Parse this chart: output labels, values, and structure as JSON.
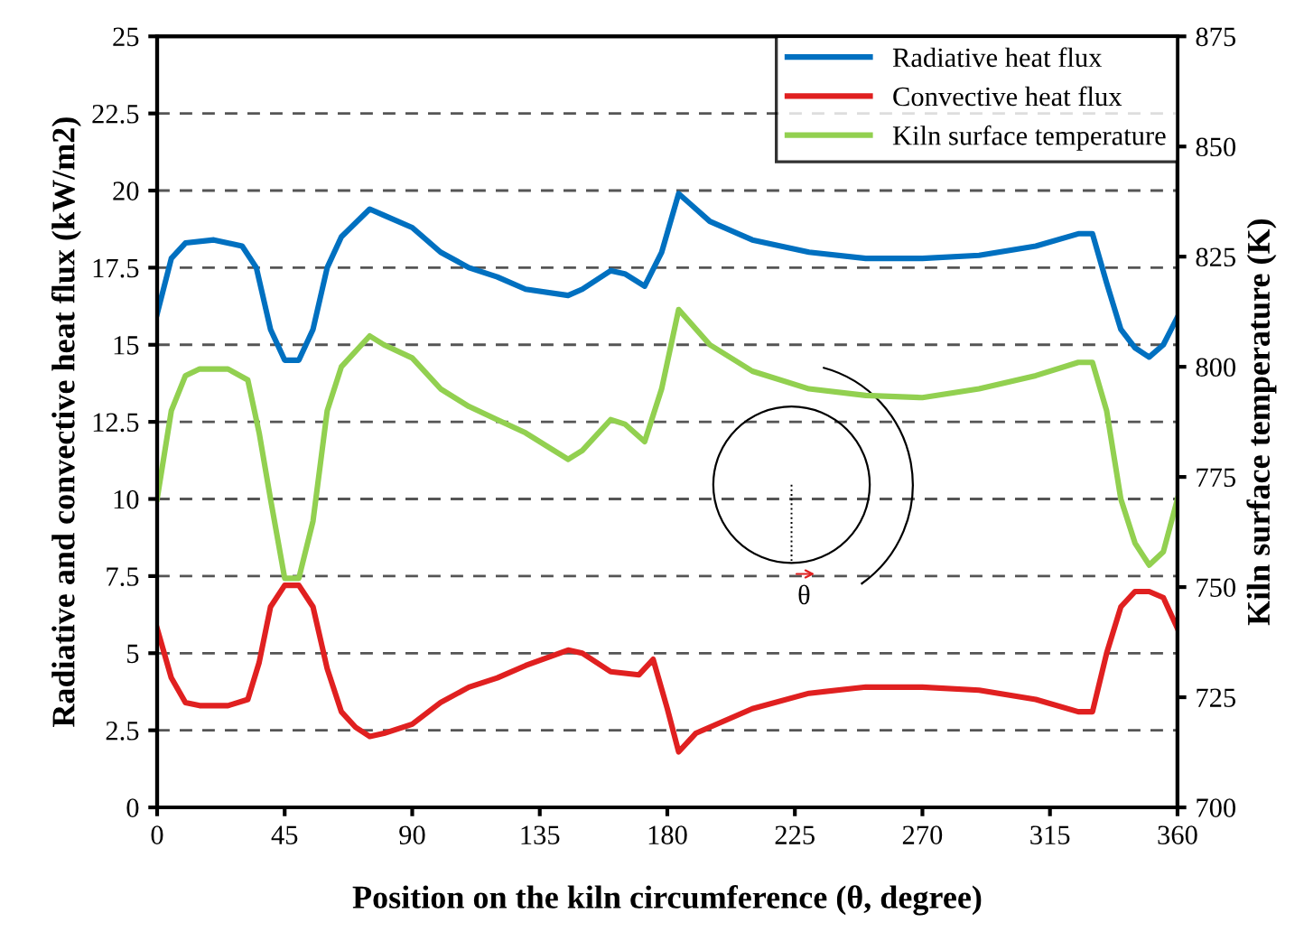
{
  "chart_data": {
    "type": "line",
    "xlabel": "Position on the kiln circumference (θ, degree)",
    "ylabel": "Radiative and convective heat flux (kW/m2)",
    "y2label": "Kiln surface temperature (K)",
    "annotations": [
      "θ"
    ],
    "xlim": [
      0,
      360
    ],
    "xticks": [
      0,
      45,
      90,
      135,
      180,
      225,
      270,
      315,
      360
    ],
    "ylim": [
      0,
      25
    ],
    "yticks": [
      0,
      2.5,
      5,
      7.5,
      10,
      12.5,
      15,
      17.5,
      20,
      22.5,
      25
    ],
    "y2lim": [
      700,
      875
    ],
    "y2ticks": [
      700,
      725,
      750,
      775,
      800,
      825,
      850,
      875
    ],
    "grid": "y",
    "legend": "top right",
    "line_style": "solid",
    "marker": "none",
    "series": [
      {
        "name": "Radiative heat flux",
        "color": "#0070c0",
        "x": [
          0,
          5,
          10,
          20,
          30,
          35,
          40,
          45,
          50,
          55,
          60,
          65,
          75,
          80,
          90,
          100,
          110,
          120,
          130,
          145,
          150,
          160,
          165,
          172,
          178,
          184,
          195,
          210,
          230,
          250,
          270,
          290,
          310,
          325,
          330,
          335,
          340,
          345,
          350,
          355,
          360
        ],
        "values": [
          16.0,
          17.8,
          18.3,
          18.4,
          18.2,
          17.5,
          15.5,
          14.5,
          14.5,
          15.5,
          17.5,
          18.5,
          19.4,
          19.2,
          18.8,
          18.0,
          17.5,
          17.2,
          16.8,
          16.6,
          16.8,
          17.4,
          17.3,
          16.9,
          18.0,
          19.9,
          19.0,
          18.4,
          18.0,
          17.8,
          17.8,
          17.9,
          18.2,
          18.6,
          18.6,
          17.0,
          15.5,
          14.9,
          14.6,
          15.0,
          15.9
        ]
      },
      {
        "name": "Convective heat flux",
        "color": "#e02020",
        "x": [
          0,
          5,
          10,
          15,
          25,
          32,
          36,
          40,
          45,
          50,
          55,
          60,
          65,
          70,
          75,
          80,
          90,
          100,
          110,
          120,
          130,
          145,
          150,
          160,
          170,
          175,
          180,
          184,
          190,
          210,
          230,
          250,
          270,
          290,
          310,
          325,
          330,
          335,
          340,
          345,
          350,
          355,
          360
        ],
        "values": [
          5.8,
          4.2,
          3.4,
          3.3,
          3.3,
          3.5,
          4.7,
          6.5,
          7.2,
          7.2,
          6.5,
          4.5,
          3.1,
          2.6,
          2.3,
          2.4,
          2.7,
          3.4,
          3.9,
          4.2,
          4.6,
          5.1,
          5.0,
          4.4,
          4.3,
          4.8,
          3.2,
          1.8,
          2.4,
          3.2,
          3.7,
          3.9,
          3.9,
          3.8,
          3.5,
          3.1,
          3.1,
          5.0,
          6.5,
          7.0,
          7.0,
          6.8,
          5.8
        ]
      },
      {
        "name": "Kiln surface temperature",
        "color": "#92d050",
        "axis": "y2",
        "x": [
          0,
          5,
          10,
          15,
          25,
          32,
          36,
          40,
          45,
          50,
          55,
          60,
          65,
          75,
          80,
          90,
          100,
          110,
          120,
          130,
          140,
          145,
          150,
          160,
          165,
          172,
          178,
          184,
          195,
          210,
          230,
          250,
          270,
          290,
          310,
          325,
          330,
          335,
          340,
          345,
          350,
          355,
          360
        ],
        "values": [
          770,
          790,
          798,
          799.5,
          799.5,
          797,
          785,
          770,
          752,
          752,
          765,
          790,
          800,
          807,
          805,
          802,
          795,
          791,
          788,
          785,
          781,
          779,
          781,
          788,
          787,
          783,
          795,
          813,
          805,
          799,
          795,
          793.5,
          793,
          795,
          798,
          801,
          801,
          790,
          770,
          760,
          755,
          758,
          770
        ]
      }
    ]
  }
}
